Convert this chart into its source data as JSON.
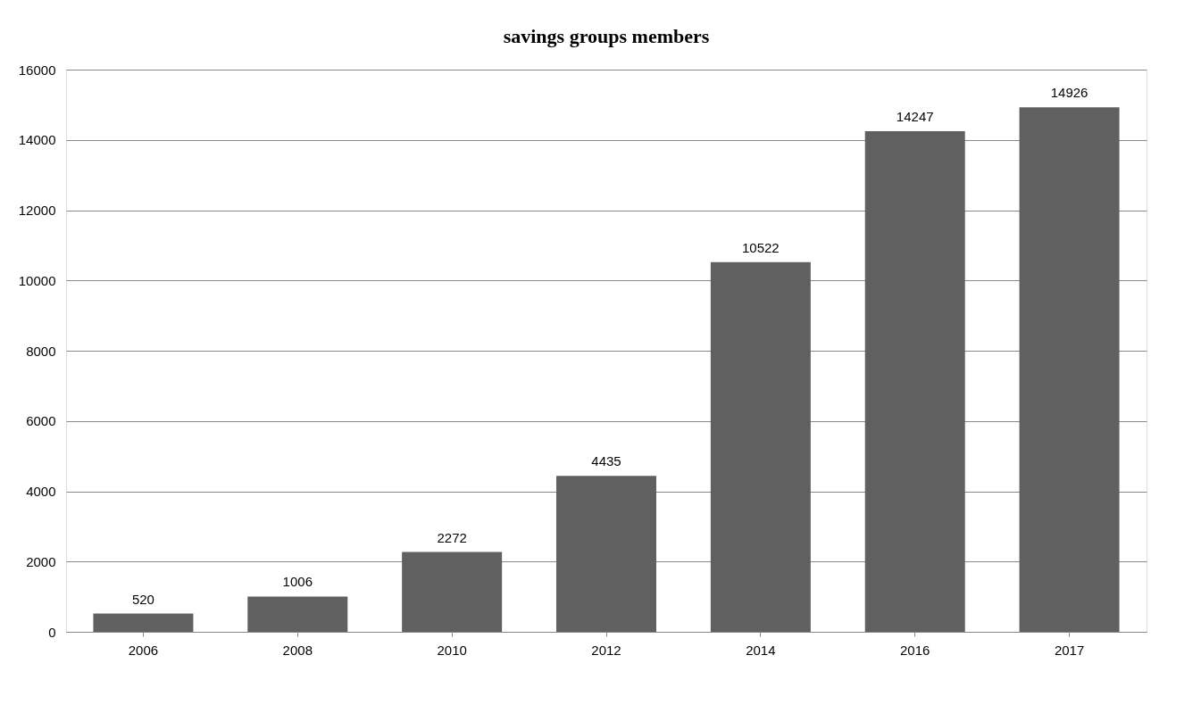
{
  "chart_data": {
    "type": "bar",
    "title": "savings groups members",
    "categories": [
      "2006",
      "2008",
      "2010",
      "2012",
      "2014",
      "2016",
      "2017"
    ],
    "values": [
      520,
      1006,
      2272,
      4435,
      10522,
      14247,
      14926
    ],
    "color": "#606060",
    "ylim": [
      0,
      16000
    ],
    "yticks": [
      0,
      2000,
      4000,
      6000,
      8000,
      10000,
      12000,
      14000,
      16000
    ],
    "grid": "y",
    "data_labels": true
  }
}
